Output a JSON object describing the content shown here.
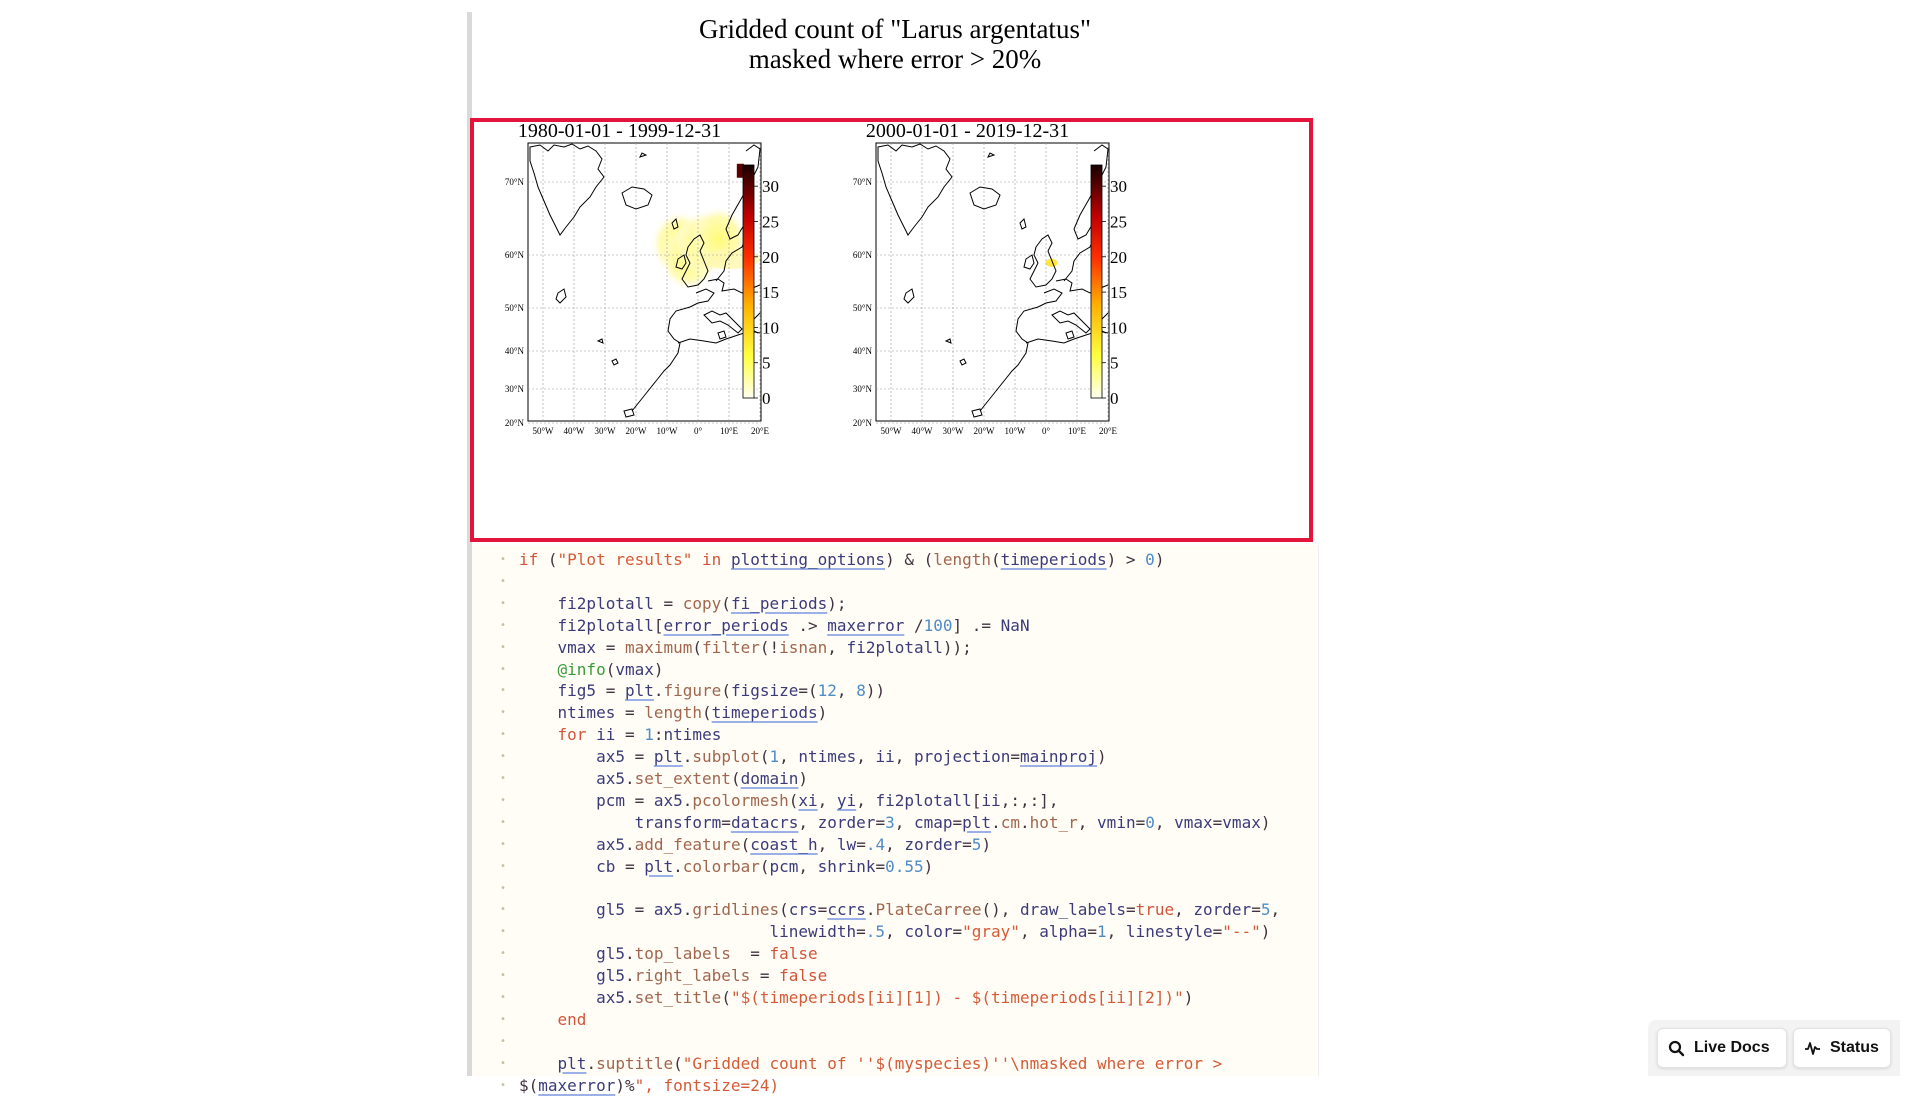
{
  "figure": {
    "title_line1": "Gridded count of \"Larus argentatus\"",
    "title_line2": "masked where error > 20%",
    "panels": [
      {
        "title": "1980-01-01 - 1999-12-31"
      },
      {
        "title": "2000-01-01 - 2019-12-31"
      }
    ],
    "lat_labels": [
      "70°N",
      "60°N",
      "50°N",
      "40°N",
      "30°N",
      "20°N"
    ],
    "lon_labels": [
      "50°W",
      "40°W",
      "30°W",
      "20°W",
      "10°W",
      "0°",
      "10°E",
      "20°E"
    ],
    "colorbar_ticks": [
      "30",
      "25",
      "20",
      "15",
      "10",
      "5",
      "0"
    ],
    "colormap": "hot_r"
  },
  "chart_data": [
    {
      "type": "heatmap",
      "title": "1980-01-01 - 1999-12-31",
      "xlim": [
        -55,
        22
      ],
      "ylim": [
        18,
        76
      ],
      "clim": [
        0,
        33
      ],
      "colorbar_ticks": [
        0,
        5,
        10,
        15,
        20,
        25,
        30
      ],
      "hot_cells": [
        {
          "lon": -5,
          "lat": 55,
          "value": 3
        },
        {
          "lon": -2,
          "lat": 52,
          "value": 4
        },
        {
          "lon": 3,
          "lat": 55,
          "value": 2
        },
        {
          "lon": 8,
          "lat": 56,
          "value": 3
        },
        {
          "lon": 15,
          "lat": 70,
          "value": 32
        }
      ]
    },
    {
      "type": "heatmap",
      "title": "2000-01-01 - 2019-12-31",
      "xlim": [
        -55,
        22
      ],
      "ylim": [
        18,
        76
      ],
      "clim": [
        0,
        33
      ],
      "colorbar_ticks": [
        0,
        5,
        10,
        15,
        20,
        25,
        30
      ],
      "hot_cells": [
        {
          "lon": 3,
          "lat": 51,
          "value": 6
        }
      ]
    }
  ],
  "code": {
    "lines": [
      "if (\"Plot results\" in plotting_options) & (length(timeperiods) > 0)",
      "",
      "    fi2plotall = copy(fi_periods);",
      "    fi2plotall[error_periods .> maxerror /100] .= NaN",
      "    vmax = maximum(filter(!isnan, fi2plotall));",
      "    @info(vmax)",
      "    fig5 = plt.figure(figsize=(12, 8))",
      "    ntimes = length(timeperiods)",
      "    for ii = 1:ntimes",
      "        ax5 = plt.subplot(1, ntimes, ii, projection=mainproj)",
      "        ax5.set_extent(domain)",
      "        pcm = ax5.pcolormesh(xi, yi, fi2plotall[ii,:,:],",
      "            transform=datacrs, zorder=3, cmap=plt.cm.hot_r, vmin=0, vmax=vmax)",
      "        ax5.add_feature(coast_h, lw=.4, zorder=5)",
      "        cb = plt.colorbar(pcm, shrink=0.55)",
      "",
      "        gl5 = ax5.gridlines(crs=ccrs.PlateCarree(), draw_labels=true, zorder=5,",
      "                          linewidth=.5, color=\"gray\", alpha=1, linestyle=\"--\")",
      "        gl5.top_labels  = false",
      "        gl5.right_labels = false",
      "        ax5.set_title(\"$(timeperiods[ii][1]) - $(timeperiods[ii][2])\")",
      "    end",
      "",
      "    plt.suptitle(\"Gridded count of ''$(myspecies)''\\nmasked where error >",
      "$(maxerror)%\", fontsize=24)"
    ]
  },
  "toolbar": {
    "live_docs_label": "Live Docs",
    "status_label": "Status"
  },
  "colors": {
    "highlight": "#e2143b",
    "code_bg": "#fffdf6"
  }
}
